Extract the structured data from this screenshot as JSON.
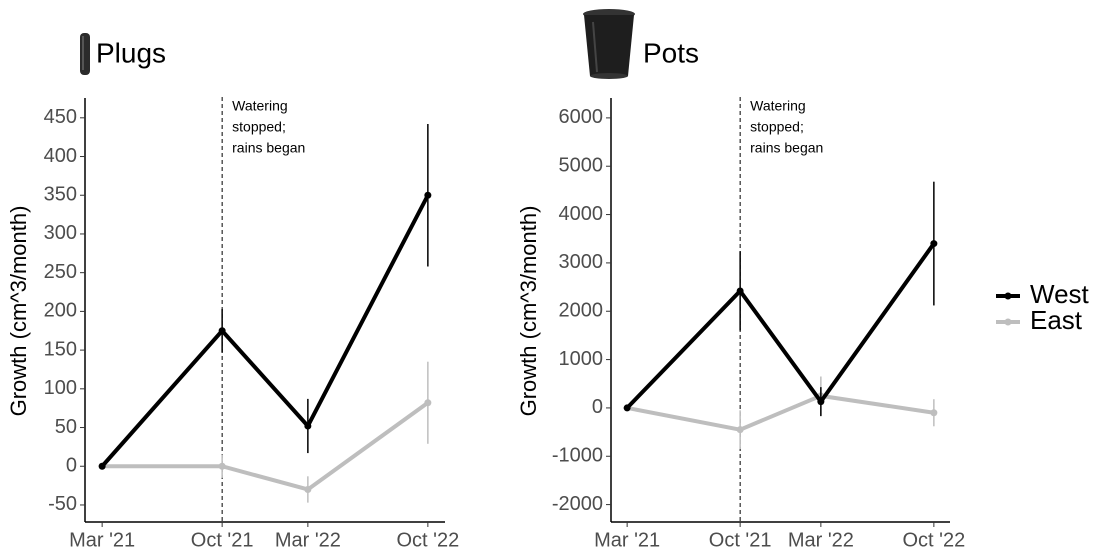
{
  "chart_data": [
    {
      "type": "line",
      "title": "Plugs",
      "y_label": "Growth (cm^3/month)",
      "x": [
        "2021-03",
        "2021-10",
        "2022-03",
        "2022-10"
      ],
      "xlim": [
        "2021-02",
        "2022-11"
      ],
      "xticks": [
        {
          "value": "2021-03",
          "label": "Mar '21"
        },
        {
          "value": "2021-10",
          "label": "Oct '21"
        },
        {
          "value": "2022-03",
          "label": "Mar '22"
        },
        {
          "value": "2022-10",
          "label": "Oct '22"
        }
      ],
      "ylim": [
        -72,
        473
      ],
      "yticks": [
        -50,
        0,
        50,
        100,
        150,
        200,
        250,
        300,
        350,
        400,
        450
      ],
      "series": [
        {
          "color": "#000000",
          "values": [
            0,
            175,
            52,
            350
          ],
          "errors": [
            0,
            28,
            35,
            92
          ]
        },
        {
          "color": "#bebebe",
          "values": [
            0,
            0,
            -30,
            82
          ],
          "errors": [
            0,
            15,
            17,
            53
          ]
        }
      ],
      "annotation": {
        "x": "2021-10",
        "lines": [
          "Watering",
          "stopped;",
          "rains began"
        ]
      }
    },
    {
      "type": "line",
      "title": "Pots",
      "y_label": "Growth (cm^3/month)",
      "x": [
        "2021-03",
        "2021-10",
        "2022-03",
        "2022-10"
      ],
      "xlim": [
        "2021-02",
        "2022-11"
      ],
      "xticks": [
        {
          "value": "2021-03",
          "label": "Mar '21"
        },
        {
          "value": "2021-10",
          "label": "Oct '21"
        },
        {
          "value": "2022-03",
          "label": "Mar '22"
        },
        {
          "value": "2022-10",
          "label": "Oct '22"
        }
      ],
      "ylim": [
        -2360,
        6370
      ],
      "yticks": [
        -2000,
        -1000,
        0,
        1000,
        2000,
        3000,
        4000,
        5000,
        6000
      ],
      "series": [
        {
          "name": "West",
          "color": "#000000",
          "values": [
            0,
            2420,
            130,
            3400
          ],
          "errors": [
            0,
            820,
            300,
            1280
          ]
        },
        {
          "name": "East",
          "color": "#bebebe",
          "values": [
            0,
            -450,
            250,
            -100
          ],
          "errors": [
            0,
            400,
            400,
            280
          ]
        }
      ],
      "annotation": {
        "x": "2021-10",
        "lines": [
          "Watering",
          "stopped;",
          "rains began"
        ]
      },
      "legend": "right"
    }
  ]
}
